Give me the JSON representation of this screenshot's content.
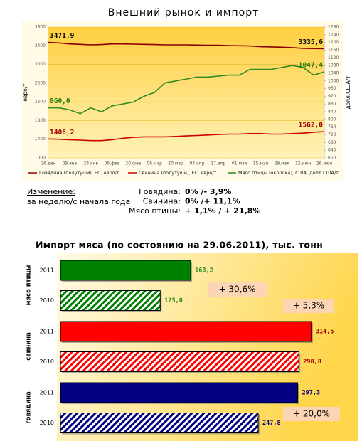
{
  "chart_data": [
    {
      "type": "line",
      "title": "Внешний рынок и импорт",
      "ylabel": "евро/т",
      "y2label": "долл.США/т",
      "categories": [
        "26.дек",
        null,
        "09.янв",
        null,
        "23.янв",
        null,
        "06.фев",
        null,
        "20.фев",
        null,
        "06.мар",
        null,
        "20.мар",
        null,
        "03.апр",
        null,
        "17.апр",
        null,
        "01.мая",
        null,
        "15.мая",
        null,
        "29.мая",
        null,
        "12.июн",
        null,
        "26.июн"
      ],
      "ylim": [
        1000,
        3800
      ],
      "yticks": [
        1000,
        1400,
        1800,
        2200,
        2600,
        3000,
        3400,
        3800
      ],
      "y2lim": [
        600,
        1280
      ],
      "y2ticks": [
        600,
        640,
        680,
        720,
        760,
        800,
        840,
        880,
        920,
        960,
        1000,
        1040,
        1080,
        1120,
        1160,
        1200,
        1240,
        1280
      ],
      "grid": true,
      "series": [
        {
          "name": "Говядина (полутуши), ЕС, евро/т",
          "color": "#8b0000",
          "values": [
            3471.9,
            3460,
            3440,
            3430,
            3420,
            3425,
            3440,
            3440,
            3435,
            3430,
            3425,
            3420,
            3420,
            3420,
            3415,
            3410,
            3410,
            3405,
            3400,
            3395,
            3380,
            3375,
            3370,
            3360,
            3345,
            3340,
            3335.6
          ],
          "value_labels": [
            "3471,9",
            null,
            null,
            null,
            null,
            null,
            null,
            null,
            null,
            null,
            null,
            null,
            null,
            null,
            null,
            null,
            null,
            null,
            null,
            null,
            null,
            null,
            null,
            null,
            null,
            null,
            "3335,6"
          ],
          "label_color": "#000000"
        },
        {
          "name": "Свинина (полутуши), ЕС, евро/т",
          "color": "#cc0000",
          "values": [
            1406.2,
            1400,
            1390,
            1380,
            1370,
            1370,
            1390,
            1420,
            1440,
            1450,
            1450,
            1450,
            1460,
            1470,
            1480,
            1490,
            1500,
            1510,
            1510,
            1520,
            1520,
            1510,
            1510,
            1520,
            1530,
            1550,
            1562.0
          ],
          "value_labels": [
            "1406,2",
            null,
            null,
            null,
            null,
            null,
            null,
            null,
            null,
            null,
            null,
            null,
            null,
            null,
            null,
            null,
            null,
            null,
            null,
            null,
            null,
            null,
            null,
            null,
            null,
            null,
            "1562,0"
          ],
          "label_color": "#a00000"
        },
        {
          "name": "Мясо птицы (окорока), США, долл.США/т",
          "color": "#2e8b22",
          "axis": "y2",
          "values": [
            860.0,
            860,
            850,
            830,
            860,
            840,
            870,
            880,
            890,
            920,
            940,
            990,
            1000,
            1010,
            1020,
            1020,
            1025,
            1030,
            1030,
            1060,
            1060,
            1060,
            1070,
            1080,
            1070,
            1030,
            1047.4
          ],
          "value_labels": [
            "860,0",
            null,
            null,
            null,
            null,
            null,
            null,
            null,
            null,
            null,
            null,
            null,
            null,
            null,
            null,
            null,
            null,
            null,
            null,
            null,
            null,
            null,
            null,
            null,
            null,
            null,
            "1047,4"
          ],
          "label_color": "#1a7a10"
        }
      ]
    },
    {
      "type": "bar",
      "orientation": "horizontal",
      "title": "Импорт мяса (по состоянию на 29.06.2011), тыс. тонн",
      "categories": [
        "мясо птицы",
        "свинина",
        "говядина"
      ],
      "colors": [
        "#008000",
        "#ff0000",
        "#000080"
      ],
      "label_colors": [
        "#2e8b22",
        "#a00000",
        "#000080"
      ],
      "series": [
        {
          "name": "2011",
          "pattern": "solid",
          "values": [
            163.2,
            314.5,
            297.3
          ],
          "value_labels": [
            "163,2",
            "314,5",
            "297,3"
          ]
        },
        {
          "name": "2010",
          "pattern": "hatch",
          "values": [
            125.0,
            298.8,
            247.8
          ],
          "value_labels": [
            "125,0",
            "298,8",
            "247,8"
          ]
        }
      ],
      "annotations": [
        "+ 30,6%",
        "+ 5,3%",
        "+ 20,0%"
      ]
    }
  ],
  "summary": {
    "label": "Изменение:",
    "period": "за неделю/с начала года",
    "rows": [
      {
        "name": "Говядина:",
        "value": "0% /- 3,9%"
      },
      {
        "name": "Свинина:",
        "value": "0% /+ 11,1%"
      },
      {
        "name": "Мясо птицы:",
        "value": "+ 1,1% / + 21,8%"
      }
    ]
  }
}
